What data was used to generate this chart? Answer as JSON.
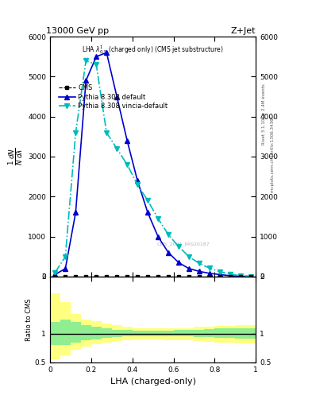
{
  "title_left": "13000 GeV pp",
  "title_right": "Z+Jet",
  "plot_label": "LHA $\\lambda^{1}_{0.5}$ (charged only) (CMS jet substructure)",
  "xlabel": "LHA (charged-only)",
  "ylabel_ratio": "Ratio to CMS",
  "right_label1": "Rivet 3.1.10, ≥ 2.4M events",
  "right_label2": "mcplots.cern.ch [arXiv:1306.3436]",
  "watermark": "CMS_2021_PAS20187",
  "x_bins": [
    0.0,
    0.05,
    0.1,
    0.15,
    0.2,
    0.25,
    0.3,
    0.35,
    0.4,
    0.45,
    0.5,
    0.55,
    0.6,
    0.65,
    0.7,
    0.75,
    0.8,
    0.85,
    0.9,
    0.95,
    1.0
  ],
  "pythia_default_y": [
    50,
    200,
    1600,
    4900,
    5500,
    5600,
    4500,
    3400,
    2400,
    1600,
    1000,
    600,
    350,
    200,
    130,
    80,
    50,
    20,
    8,
    3
  ],
  "pythia_vincia_y": [
    100,
    500,
    3600,
    5400,
    5300,
    3600,
    3200,
    2800,
    2300,
    1900,
    1450,
    1050,
    750,
    500,
    330,
    210,
    120,
    60,
    20,
    5
  ],
  "cms_y": [
    0,
    0,
    0,
    0,
    0,
    0,
    0,
    0,
    0,
    0,
    0,
    0,
    0,
    0,
    0,
    0,
    0,
    0,
    0,
    0
  ],
  "ratio_yellow_upper": [
    1.7,
    1.55,
    1.35,
    1.25,
    1.22,
    1.18,
    1.15,
    1.12,
    1.1,
    1.1,
    1.1,
    1.1,
    1.1,
    1.1,
    1.12,
    1.12,
    1.13,
    1.14,
    1.15,
    1.15
  ],
  "ratio_yellow_lower": [
    0.55,
    0.62,
    0.72,
    0.78,
    0.82,
    0.85,
    0.87,
    0.88,
    0.9,
    0.9,
    0.9,
    0.88,
    0.88,
    0.88,
    0.87,
    0.86,
    0.85,
    0.84,
    0.83,
    0.83
  ],
  "ratio_green_upper": [
    1.2,
    1.25,
    1.2,
    1.15,
    1.12,
    1.1,
    1.07,
    1.06,
    1.05,
    1.05,
    1.05,
    1.05,
    1.06,
    1.06,
    1.07,
    1.08,
    1.09,
    1.1,
    1.1,
    1.1
  ],
  "ratio_green_lower": [
    0.8,
    0.8,
    0.85,
    0.88,
    0.9,
    0.92,
    0.94,
    0.95,
    0.95,
    0.95,
    0.95,
    0.95,
    0.95,
    0.95,
    0.94,
    0.94,
    0.93,
    0.92,
    0.91,
    0.91
  ],
  "ylim_main": [
    0,
    6000
  ],
  "ylim_ratio": [
    0.5,
    2.0
  ],
  "color_pythia_default": "#0000cc",
  "color_pythia_vincia": "#00bbbb",
  "color_cms_marker": "#000000",
  "color_green_fill": "#90EE90",
  "color_yellow_fill": "#FFFF80",
  "yticks_main": [
    0,
    1000,
    2000,
    3000,
    4000,
    5000,
    6000
  ],
  "ytick_labels_main": [
    "0",
    "1000",
    "2000",
    "3000",
    "4000",
    "5000",
    "6000"
  ],
  "yticks_ratio": [
    0.5,
    1.0,
    2.0
  ],
  "ytick_labels_ratio": [
    "0.5",
    "1",
    "2"
  ],
  "xticks": [
    0.0,
    0.2,
    0.4,
    0.6,
    0.8,
    1.0
  ],
  "xtick_labels": [
    "0",
    "0.2",
    "0.4",
    "0.6",
    "0.8",
    "1"
  ]
}
